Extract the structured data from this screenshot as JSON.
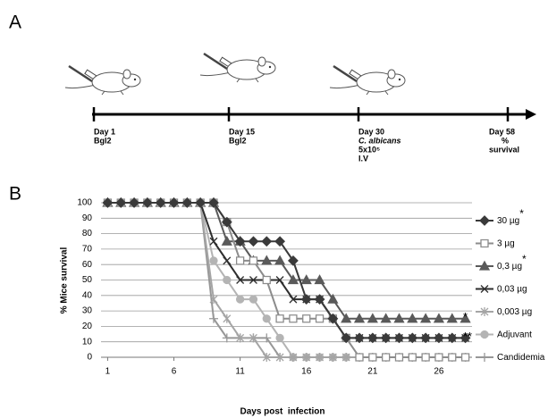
{
  "panel_a": {
    "label": "A",
    "events": [
      {
        "lines": [
          "Day 1",
          "Bgl2"
        ]
      },
      {
        "lines": [
          "Day 15",
          "Bgl2"
        ]
      },
      {
        "lines": [
          "Day 30",
          "C. albicans",
          "5x10⁵",
          "I.V"
        ]
      },
      {
        "lines": [
          "Day 58",
          "%",
          "survival"
        ]
      }
    ]
  },
  "chart_data": {
    "type": "line",
    "panel_label": "B",
    "y_label": "% Mice survival",
    "x_label": "Days post  infection",
    "x": [
      1,
      2,
      3,
      4,
      5,
      6,
      7,
      8,
      9,
      10,
      11,
      12,
      13,
      14,
      15,
      16,
      17,
      18,
      19,
      20,
      21,
      22,
      23,
      24,
      25,
      26,
      27,
      28
    ],
    "xlim": [
      0.5,
      28.5
    ],
    "xticks": [
      1,
      6,
      11,
      16,
      21,
      26
    ],
    "ylim": [
      0,
      100
    ],
    "yticks": [
      0,
      10,
      20,
      30,
      40,
      50,
      60,
      70,
      80,
      90,
      100
    ],
    "grid": true,
    "legend": "right",
    "series": [
      {
        "name": "30 µg",
        "note": "*",
        "color": "#3a3a3a",
        "marker": "diamond",
        "values": [
          100,
          100,
          100,
          100,
          100,
          100,
          100,
          100,
          100,
          87.5,
          75,
          75,
          75,
          75,
          62.5,
          37.5,
          37.5,
          25,
          12.5,
          12.5,
          12.5,
          12.5,
          12.5,
          12.5,
          12.5,
          12.5,
          12.5,
          12.5
        ]
      },
      {
        "name": "3 µg",
        "color": "#8c8c8c",
        "marker": "square-open",
        "values": [
          100,
          100,
          100,
          100,
          100,
          100,
          100,
          100,
          100,
          87.5,
          62.5,
          62.5,
          50,
          25,
          25,
          25,
          25,
          25,
          12.5,
          0,
          0,
          0,
          0,
          0,
          0,
          0,
          0,
          0
        ]
      },
      {
        "name": "0,3 µg",
        "note": "*",
        "color": "#5a5a5a",
        "marker": "triangle",
        "values": [
          100,
          100,
          100,
          100,
          100,
          100,
          100,
          100,
          100,
          75,
          75,
          62.5,
          62.5,
          62.5,
          50,
          50,
          50,
          37.5,
          25,
          25,
          25,
          25,
          25,
          25,
          25,
          25,
          25,
          25
        ]
      },
      {
        "name": "0,03 µg",
        "color": "#2e2e2e",
        "marker": "x",
        "values": [
          100,
          100,
          100,
          100,
          100,
          100,
          100,
          100,
          75,
          62.5,
          50,
          50,
          50,
          50,
          37.5,
          37.5,
          37.5,
          25,
          12.5,
          12.5,
          12.5,
          12.5,
          12.5,
          12.5,
          12.5,
          12.5,
          12.5,
          12.5
        ]
      },
      {
        "name": "0,003 µg",
        "color": "#a5a5a5",
        "marker": "star",
        "values": [
          100,
          100,
          100,
          100,
          100,
          100,
          100,
          100,
          37.5,
          25,
          12.5,
          12.5,
          0,
          0,
          0,
          0,
          0,
          0,
          0,
          0,
          0,
          0,
          0,
          0,
          0,
          0,
          0,
          0
        ]
      },
      {
        "name": "Adjuvant",
        "color": "#b4b4b4",
        "marker": "circle",
        "values": [
          100,
          100,
          100,
          100,
          100,
          100,
          100,
          100,
          62.5,
          50,
          37.5,
          37.5,
          25,
          12.5,
          0,
          0,
          0,
          0,
          0,
          0,
          0,
          0,
          0,
          0,
          0,
          0,
          0,
          0
        ]
      },
      {
        "name": "Candidemia",
        "color": "#979797",
        "marker": "plus",
        "values": [
          100,
          100,
          100,
          100,
          100,
          100,
          100,
          100,
          25,
          12.5,
          12.5,
          12.5,
          12.5,
          0,
          0,
          0,
          0,
          0,
          0,
          0,
          0,
          0,
          0,
          0,
          0,
          0,
          0,
          0
        ]
      }
    ],
    "annotations": [
      {
        "text": "*",
        "value": 25
      },
      {
        "text": "**",
        "value": 12.5
      }
    ]
  }
}
